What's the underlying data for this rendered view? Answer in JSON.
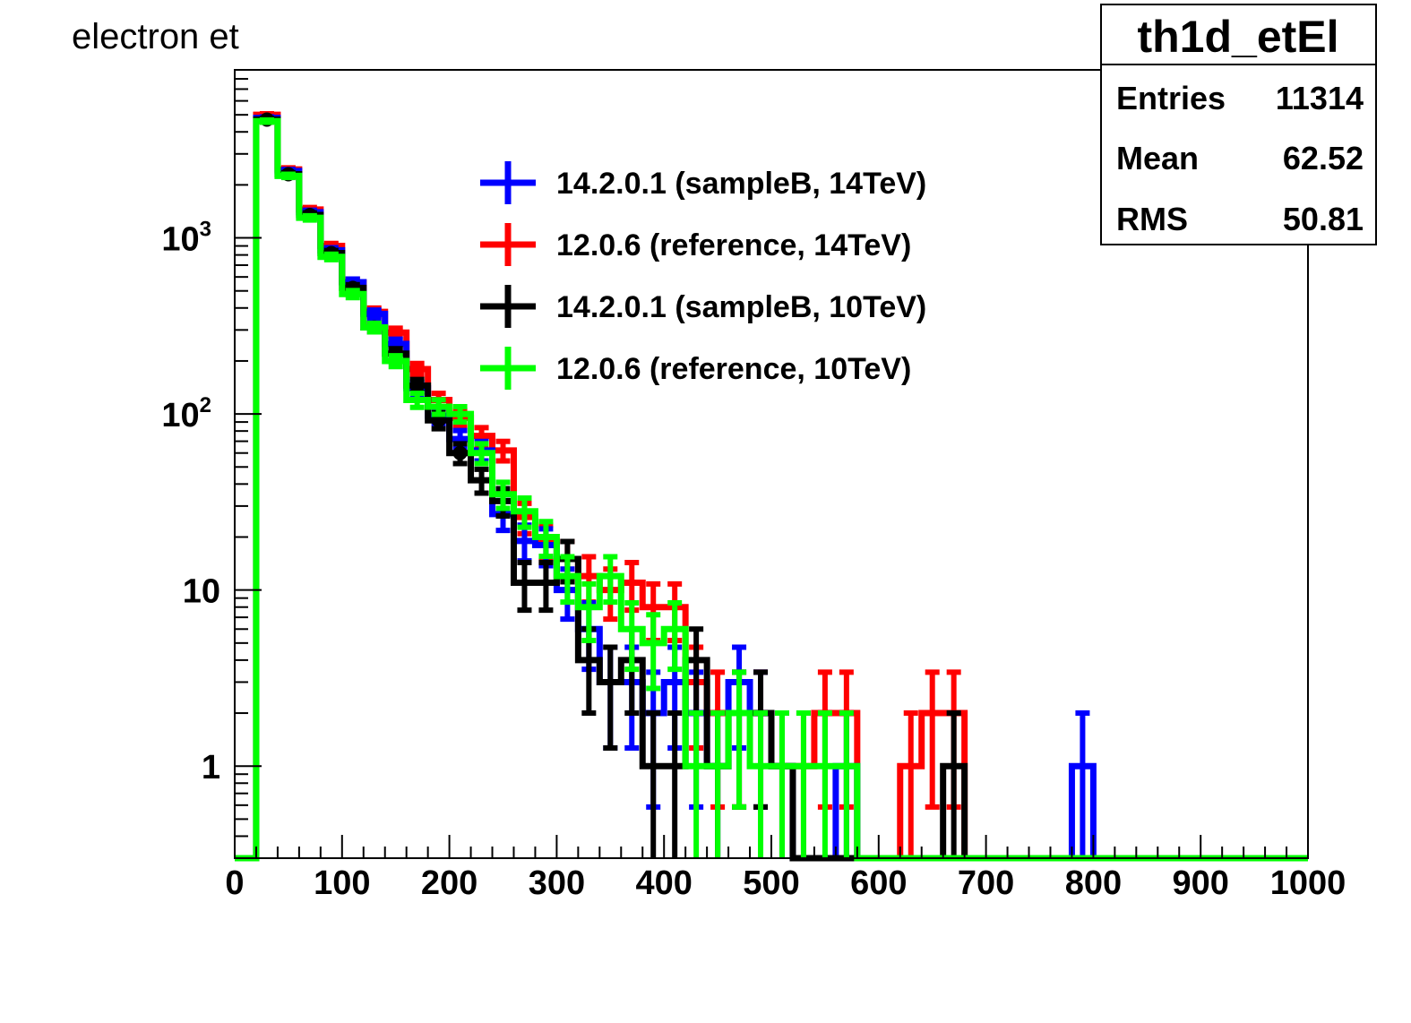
{
  "chart_data": {
    "type": "histogram",
    "title": "electron et",
    "xlabel": "",
    "ylabel": "",
    "xlim": [
      0,
      1000
    ],
    "ylim": [
      0.3,
      9000
    ],
    "y_scale": "log",
    "grid": false,
    "legend_position": "top-center",
    "x_ticks": [
      "0",
      "100",
      "200",
      "300",
      "400",
      "500",
      "600",
      "700",
      "800",
      "900",
      "1000"
    ],
    "y_ticks": [
      {
        "value": 1,
        "label": "1",
        "exp": ""
      },
      {
        "value": 10,
        "label": "10",
        "exp": ""
      },
      {
        "value": 100,
        "label": "10",
        "exp": "2"
      },
      {
        "value": 1000,
        "label": "10",
        "exp": "3"
      }
    ],
    "bin_width": 20,
    "bin_starts": [
      20,
      40,
      60,
      80,
      100,
      120,
      140,
      160,
      180,
      200,
      220,
      240,
      260,
      280,
      300,
      320,
      340,
      360,
      380,
      400,
      420,
      440,
      460,
      480,
      500,
      520,
      540,
      560,
      580,
      600,
      620,
      640,
      660,
      680,
      700,
      720,
      740,
      760,
      780
    ],
    "series": [
      {
        "name": "14.2.0.1 (sampleB, 14TeV)",
        "color": "#0000ff",
        "values": [
          4800,
          2400,
          1400,
          850,
          560,
          370,
          250,
          140,
          98,
          72,
          62,
          27,
          19,
          18,
          10,
          6,
          3,
          3,
          2,
          3,
          2,
          1,
          3,
          2,
          1,
          0,
          0,
          1,
          0,
          0,
          0,
          0,
          0,
          0,
          0,
          0,
          0,
          0,
          1
        ]
      },
      {
        "name": "12.0.6 (reference, 14TeV)",
        "color": "#ff0000",
        "values": [
          5000,
          2450,
          1450,
          900,
          560,
          380,
          290,
          180,
          120,
          95,
          75,
          62,
          26,
          19,
          15,
          12,
          10,
          11,
          8,
          8,
          3,
          2,
          2,
          2,
          1,
          1,
          2,
          2,
          0,
          0,
          1,
          2,
          2,
          0,
          0,
          0,
          0,
          0,
          0
        ]
      },
      {
        "name": "14.2.0.1 (sampleB, 10TeV)",
        "color": "#000000",
        "values": [
          4700,
          2300,
          1350,
          820,
          520,
          310,
          220,
          145,
          92,
          60,
          42,
          32,
          11,
          11,
          15,
          4,
          3,
          4,
          1,
          1,
          4,
          1,
          2,
          2,
          1,
          0,
          0,
          0,
          0,
          0,
          0,
          0,
          1,
          0,
          0,
          0,
          0,
          0,
          0
        ]
      },
      {
        "name": "12.0.6 (reference, 10TeV)",
        "color": "#00ff00",
        "values": [
          4600,
          2250,
          1300,
          780,
          480,
          310,
          200,
          120,
          110,
          100,
          60,
          35,
          28,
          20,
          12,
          8,
          12,
          6,
          5,
          6,
          1,
          1,
          2,
          1,
          1,
          1,
          1,
          1,
          0,
          0,
          0,
          0,
          0,
          0,
          0,
          0,
          0,
          0,
          0
        ]
      }
    ]
  },
  "stats_box": {
    "title": "th1d_etEl",
    "rows": [
      {
        "label": "Entries",
        "value": "11314"
      },
      {
        "label": "Mean",
        "value": "62.52"
      },
      {
        "label": "RMS",
        "value": "50.81"
      }
    ]
  }
}
